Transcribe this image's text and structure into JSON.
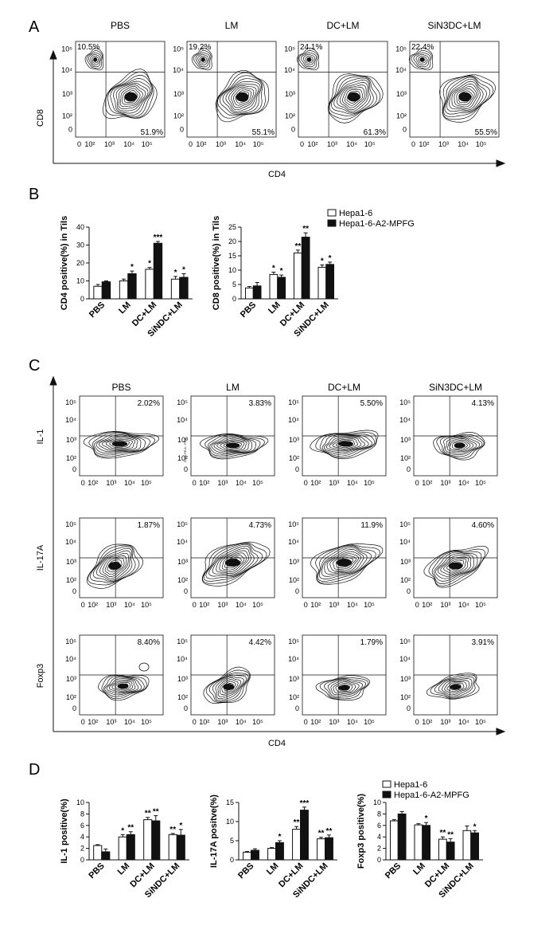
{
  "panels": {
    "A": {
      "letter": "A",
      "xlabel": "CD4",
      "ylabel": "CD8",
      "groups": [
        "PBS",
        "LM",
        "DC+LM",
        "SiN3DC+LM"
      ],
      "upper_left_pct": [
        "10.5%",
        "19.2%",
        "24.1%",
        "22.4%"
      ],
      "lower_right_pct": [
        "51.9%",
        "55.1%",
        "61.3%",
        "55.5%"
      ]
    },
    "B": {
      "letter": "B",
      "legend": [
        "Hepa1-6",
        "Hepa1-6-A2-MPFG"
      ]
    },
    "C": {
      "letter": "C",
      "xlabel": "CD4",
      "groups": [
        "PBS",
        "LM",
        "DC+LM",
        "SiN3DC+LM"
      ],
      "rows": [
        {
          "ylabel": "IL-1",
          "pct": [
            "2.02%",
            "3.83%",
            "5.50%",
            "4.13%"
          ]
        },
        {
          "ylabel": "IL-17A",
          "pct": [
            "1.87%",
            "4.73%",
            "11.9%",
            "4.60%"
          ]
        },
        {
          "ylabel": "Foxp3",
          "pct": [
            "8.40%",
            "4.42%",
            "1.79%",
            "3.91%"
          ]
        }
      ],
      "tiny_axis_text": "Comp-PE-A :: PE-A"
    },
    "D": {
      "letter": "D",
      "legend": [
        "Hepa1-6",
        "Hepa1-6-A2-MPFG"
      ]
    }
  },
  "flow_ticks_y": [
    "10⁵",
    "10⁴",
    "10³",
    "10²",
    "0"
  ],
  "flow_ticks_x": [
    "0",
    "10²",
    "10³",
    "10⁴",
    "10⁵"
  ],
  "chart_data": [
    {
      "type": "bar",
      "ylabel": "CD4 positive(%) in Tils",
      "ylim": [
        0,
        40
      ],
      "yticks": [
        0,
        10,
        20,
        30,
        40
      ],
      "categories": [
        "PBS",
        "LM",
        "DC+LM",
        "SiNDC+LM"
      ],
      "series": [
        {
          "name": "Hepa1-6",
          "values": [
            7,
            10,
            16.5,
            11
          ],
          "errors": [
            1,
            1,
            1,
            1.5
          ],
          "stars": [
            "",
            "",
            "*",
            "*"
          ]
        },
        {
          "name": "Hepa1-6-A2-MPFG",
          "values": [
            9.5,
            14,
            31,
            12
          ],
          "errors": [
            0.5,
            1.5,
            1,
            2
          ],
          "stars": [
            "",
            "*",
            "***",
            "*"
          ]
        }
      ]
    },
    {
      "type": "bar",
      "ylabel": "CD8 positive(%) in Tils",
      "ylim": [
        0,
        25
      ],
      "yticks": [
        0,
        5,
        10,
        15,
        20,
        25
      ],
      "categories": [
        "PBS",
        "LM",
        "DC+LM",
        "SiNDC+LM"
      ],
      "legend_position": "top-right",
      "series": [
        {
          "name": "Hepa1-6",
          "values": [
            3.8,
            8.5,
            16,
            11
          ],
          "errors": [
            0.5,
            0.8,
            1,
            0.8
          ],
          "stars": [
            "",
            "*",
            "**",
            "*"
          ]
        },
        {
          "name": "Hepa1-6-A2-MPFG",
          "values": [
            4.5,
            7.5,
            21.5,
            12
          ],
          "errors": [
            1.2,
            0.8,
            1.5,
            0.8
          ],
          "stars": [
            "",
            "*",
            "**",
            "*"
          ]
        }
      ]
    },
    {
      "type": "bar",
      "ylabel": "IL-1 positive(%)",
      "ylim": [
        0,
        10
      ],
      "yticks": [
        0,
        2,
        4,
        6,
        8,
        10
      ],
      "categories": [
        "PBS",
        "LM",
        "DC+LM",
        "SiNDC+LM"
      ],
      "series": [
        {
          "name": "Hepa1-6",
          "values": [
            2.5,
            4,
            7,
            4.4
          ],
          "errors": [
            0.15,
            0.4,
            0.4,
            0.2
          ],
          "stars": [
            "",
            "*",
            "**",
            "**"
          ]
        },
        {
          "name": "Hepa1-6-A2-MPFG",
          "values": [
            1.4,
            4.4,
            6.8,
            4.3
          ],
          "errors": [
            0.5,
            0.5,
            0.9,
            1
          ],
          "stars": [
            "",
            "**",
            "**",
            "*"
          ]
        }
      ]
    },
    {
      "type": "bar",
      "ylabel": "IL-17A positve(%)",
      "ylim": [
        0,
        15
      ],
      "yticks": [
        0,
        5,
        10,
        15
      ],
      "categories": [
        "PBS",
        "LM",
        "DC+LM",
        "SiNDC+LM"
      ],
      "series": [
        {
          "name": "Hepa1-6",
          "values": [
            2,
            3,
            8,
            5.5
          ],
          "errors": [
            0.2,
            0.2,
            0.7,
            0.4
          ],
          "stars": [
            "",
            "",
            "**",
            "**"
          ]
        },
        {
          "name": "Hepa1-6-A2-MPFG",
          "values": [
            2.5,
            4.5,
            13,
            5.8
          ],
          "errors": [
            0.4,
            0.5,
            0.8,
            0.7
          ],
          "stars": [
            "",
            "*",
            "***",
            "**"
          ]
        }
      ]
    },
    {
      "type": "bar",
      "ylabel": "Foxp3 positive(%)",
      "ylim": [
        0,
        10
      ],
      "yticks": [
        0,
        2,
        4,
        6,
        8,
        10
      ],
      "categories": [
        "PBS",
        "LM",
        "DC+LM",
        "SiNDC+LM"
      ],
      "legend_position": "top",
      "series": [
        {
          "name": "Hepa1-6",
          "values": [
            6.8,
            6.1,
            3.6,
            5.1
          ],
          "errors": [
            0.2,
            0.2,
            0.4,
            0.8
          ],
          "stars": [
            "",
            "",
            "**",
            ""
          ]
        },
        {
          "name": "Hepa1-6-A2-MPFG",
          "values": [
            8,
            6,
            3.1,
            4.7
          ],
          "errors": [
            0.4,
            0.5,
            0.6,
            0.4
          ],
          "stars": [
            "",
            "*",
            "**",
            "*"
          ]
        }
      ]
    }
  ]
}
